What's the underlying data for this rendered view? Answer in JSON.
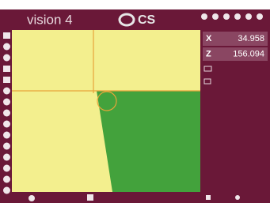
{
  "header": {
    "title": "vision 4",
    "logo": "CS"
  },
  "readouts": [
    {
      "axis": "X",
      "value": "34.958"
    },
    {
      "axis": "Z",
      "value": "156.094"
    }
  ]
}
